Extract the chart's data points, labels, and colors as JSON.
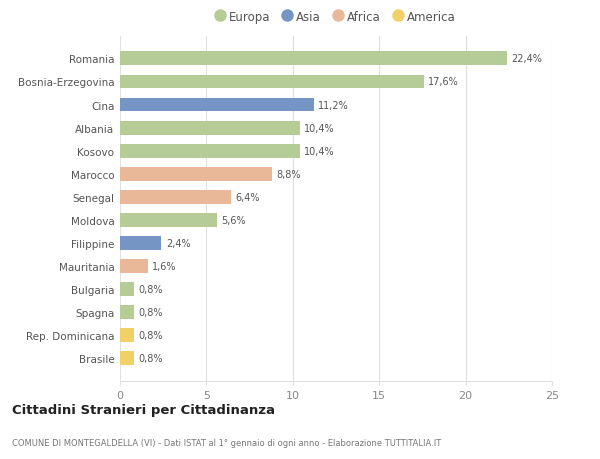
{
  "categories": [
    "Romania",
    "Bosnia-Erzegovina",
    "Cina",
    "Albania",
    "Kosovo",
    "Marocco",
    "Senegal",
    "Moldova",
    "Filippine",
    "Mauritania",
    "Bulgaria",
    "Spagna",
    "Rep. Dominicana",
    "Brasile"
  ],
  "values": [
    22.4,
    17.6,
    11.2,
    10.4,
    10.4,
    8.8,
    6.4,
    5.6,
    2.4,
    1.6,
    0.8,
    0.8,
    0.8,
    0.8
  ],
  "labels": [
    "22,4%",
    "17,6%",
    "11,2%",
    "10,4%",
    "10,4%",
    "8,8%",
    "6,4%",
    "5,6%",
    "2,4%",
    "1,6%",
    "0,8%",
    "0,8%",
    "0,8%",
    "0,8%"
  ],
  "colors": [
    "#b5cc96",
    "#b5cc96",
    "#7595c4",
    "#b5cc96",
    "#b5cc96",
    "#e8b898",
    "#e8b898",
    "#b5cc96",
    "#7595c4",
    "#e8b898",
    "#b5cc96",
    "#b5cc96",
    "#f2d068",
    "#f2d068"
  ],
  "legend_labels": [
    "Europa",
    "Asia",
    "Africa",
    "America"
  ],
  "legend_colors": [
    "#b5cc96",
    "#7595c4",
    "#e8b898",
    "#f2d068"
  ],
  "title": "Cittadini Stranieri per Cittadinanza",
  "subtitle": "COMUNE DI MONTEGALDELLA (VI) - Dati ISTAT al 1° gennaio di ogni anno - Elaborazione TUTTITALIA.IT",
  "xlim": [
    0,
    25
  ],
  "xticks": [
    0,
    5,
    10,
    15,
    20,
    25
  ],
  "background_color": "#ffffff",
  "grid_color": "#e0e0e0",
  "bar_height": 0.6
}
